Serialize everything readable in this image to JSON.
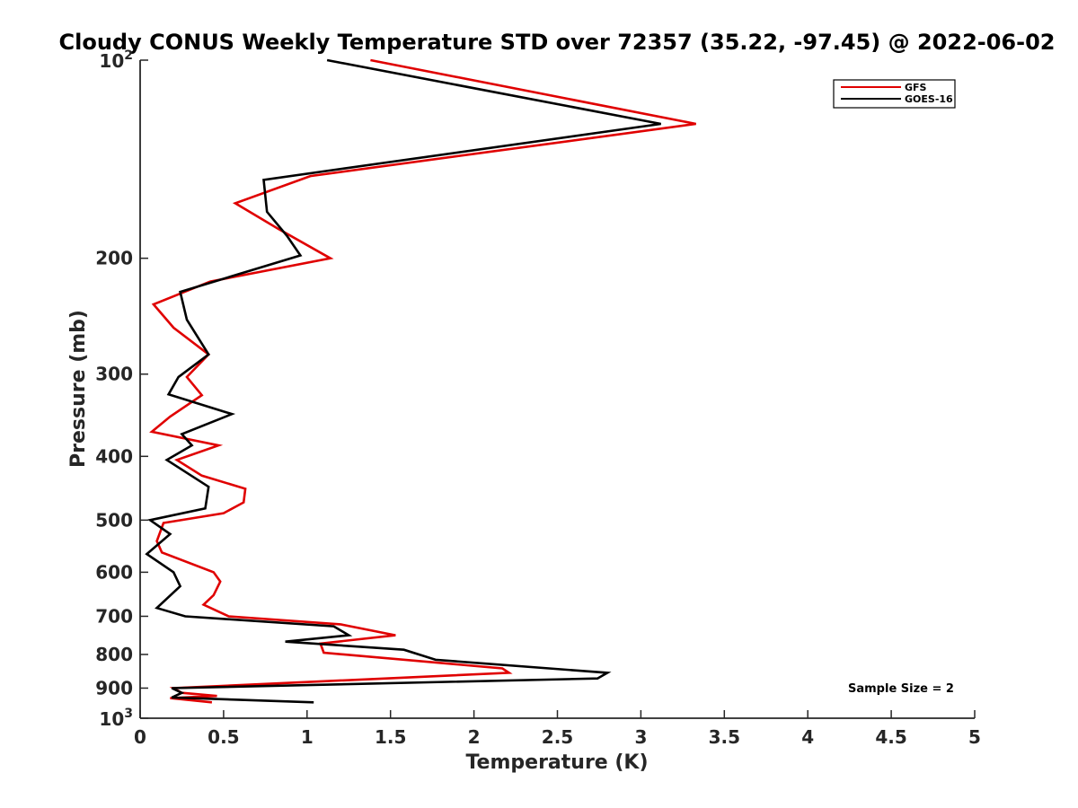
{
  "chart_data": {
    "type": "line",
    "title": "Cloudy CONUS Weekly Temperature STD over 72357 (35.22, -97.45) @ 2022-06-02",
    "xlabel": "Temperature (K)",
    "ylabel": "Pressure (mb)",
    "xlim": [
      0,
      5
    ],
    "ylim": [
      100,
      1000
    ],
    "y_scale": "log",
    "y_reversed": true,
    "grid": false,
    "legend_position": "top-right",
    "x_ticks": [
      "0",
      "0.5",
      "1",
      "1.5",
      "2",
      "2.5",
      "3",
      "3.5",
      "4",
      "4.5",
      "5"
    ],
    "y_ticks": [
      {
        "value": 100,
        "base": "10",
        "exp": "2"
      },
      {
        "value": 200,
        "label": "200"
      },
      {
        "value": 300,
        "label": "300"
      },
      {
        "value": 400,
        "label": "400"
      },
      {
        "value": 500,
        "label": "500"
      },
      {
        "value": 600,
        "label": "600"
      },
      {
        "value": 700,
        "label": "700"
      },
      {
        "value": 800,
        "label": "800"
      },
      {
        "value": 900,
        "label": "900"
      },
      {
        "value": 1000,
        "base": "10",
        "exp": "3"
      }
    ],
    "annotation": "Sample Size = 2",
    "series": [
      {
        "name": "GFS",
        "color": "#e00000",
        "points": [
          [
            1.38,
            100
          ],
          [
            3.33,
            125
          ],
          [
            1.02,
            150
          ],
          [
            0.57,
            165
          ],
          [
            0.82,
            180
          ],
          [
            1.14,
            200
          ],
          [
            0.42,
            217
          ],
          [
            0.08,
            235
          ],
          [
            0.2,
            255
          ],
          [
            0.41,
            280
          ],
          [
            0.28,
            303
          ],
          [
            0.37,
            323
          ],
          [
            0.18,
            348
          ],
          [
            0.07,
            367
          ],
          [
            0.47,
            385
          ],
          [
            0.22,
            405
          ],
          [
            0.37,
            428
          ],
          [
            0.63,
            448
          ],
          [
            0.62,
            470
          ],
          [
            0.5,
            488
          ],
          [
            0.14,
            505
          ],
          [
            0.1,
            538
          ],
          [
            0.13,
            560
          ],
          [
            0.44,
            600
          ],
          [
            0.48,
            620
          ],
          [
            0.44,
            650
          ],
          [
            0.38,
            672
          ],
          [
            0.53,
            700
          ],
          [
            1.2,
            720
          ],
          [
            1.53,
            748
          ],
          [
            1.08,
            770
          ],
          [
            1.1,
            795
          ],
          [
            2.17,
            840
          ],
          [
            2.21,
            853
          ],
          [
            0.2,
            900
          ],
          [
            0.25,
            915
          ],
          [
            0.46,
            925
          ],
          [
            0.18,
            932
          ],
          [
            0.43,
            946
          ]
        ]
      },
      {
        "name": "GOES-16",
        "color": "#000000",
        "points": [
          [
            1.12,
            100
          ],
          [
            3.12,
            125
          ],
          [
            0.74,
            152
          ],
          [
            0.76,
            170
          ],
          [
            0.88,
            185
          ],
          [
            0.96,
            198
          ],
          [
            0.24,
            225
          ],
          [
            0.28,
            248
          ],
          [
            0.41,
            280
          ],
          [
            0.23,
            303
          ],
          [
            0.17,
            322
          ],
          [
            0.55,
            345
          ],
          [
            0.25,
            370
          ],
          [
            0.31,
            385
          ],
          [
            0.16,
            405
          ],
          [
            0.41,
            445
          ],
          [
            0.39,
            480
          ],
          [
            0.06,
            500
          ],
          [
            0.18,
            525
          ],
          [
            0.04,
            563
          ],
          [
            0.2,
            600
          ],
          [
            0.24,
            630
          ],
          [
            0.1,
            680
          ],
          [
            0.27,
            700
          ],
          [
            1.16,
            725
          ],
          [
            1.25,
            748
          ],
          [
            0.87,
            765
          ],
          [
            1.58,
            787
          ],
          [
            1.77,
            815
          ],
          [
            2.45,
            840
          ],
          [
            2.8,
            853
          ],
          [
            2.74,
            870
          ],
          [
            0.19,
            900
          ],
          [
            0.25,
            915
          ],
          [
            0.19,
            930
          ],
          [
            1.04,
            946
          ]
        ]
      }
    ]
  }
}
